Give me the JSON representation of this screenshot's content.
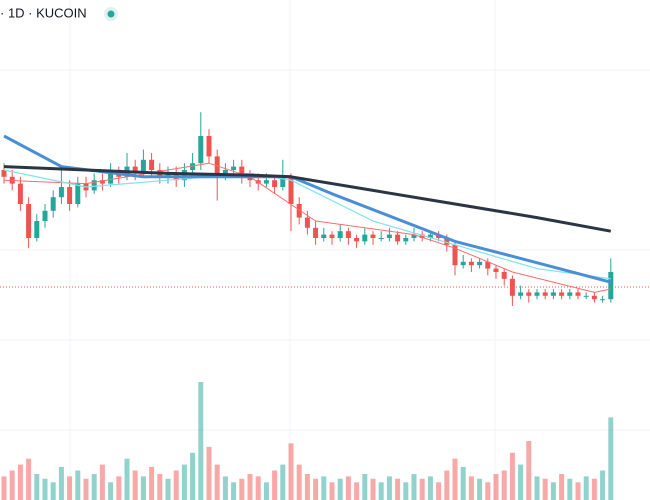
{
  "chart_data": {
    "type": "candlestick",
    "title": "· 1D · KUCOIN",
    "ylim": [
      0,
      100
    ],
    "volume_lim": [
      0,
      100
    ],
    "up_color": "#26a69a",
    "down_color": "#ef5350",
    "candles": [
      [
        50,
        52,
        46,
        48
      ],
      [
        48,
        50,
        44,
        46
      ],
      [
        46,
        48,
        38,
        40
      ],
      [
        40,
        42,
        27,
        30
      ],
      [
        30,
        37,
        29,
        35
      ],
      [
        35,
        40,
        33,
        38
      ],
      [
        38,
        44,
        36,
        42
      ],
      [
        42,
        50,
        40,
        45
      ],
      [
        45,
        47,
        38,
        40
      ],
      [
        40,
        48,
        39,
        46
      ],
      [
        46,
        48,
        42,
        44
      ],
      [
        44,
        49,
        43,
        47
      ],
      [
        47,
        49,
        44,
        46
      ],
      [
        46,
        52,
        45,
        49
      ],
      [
        49,
        51,
        46,
        48
      ],
      [
        48,
        55,
        47,
        51
      ],
      [
        51,
        53,
        47,
        49
      ],
      [
        49,
        56,
        48,
        53
      ],
      [
        53,
        55,
        48,
        50
      ],
      [
        50,
        52,
        46,
        48
      ],
      [
        48,
        51,
        46,
        49
      ],
      [
        49,
        51,
        45,
        47
      ],
      [
        47,
        52,
        45,
        50
      ],
      [
        50,
        55,
        48,
        52
      ],
      [
        52,
        67,
        50,
        60
      ],
      [
        60,
        62,
        52,
        54
      ],
      [
        54,
        56,
        41,
        49
      ],
      [
        49,
        52,
        47,
        50
      ],
      [
        50,
        53,
        48,
        51
      ],
      [
        51,
        53,
        46,
        48
      ],
      [
        48,
        50,
        45,
        47
      ],
      [
        47,
        49,
        44,
        46
      ],
      [
        46,
        49,
        45,
        47
      ],
      [
        47,
        48,
        43,
        45
      ],
      [
        45,
        53,
        44,
        48
      ],
      [
        48,
        49,
        32,
        40
      ],
      [
        40,
        42,
        34,
        36
      ],
      [
        36,
        38,
        31,
        33
      ],
      [
        33,
        35,
        28,
        30
      ],
      [
        30,
        33,
        29,
        31
      ],
      [
        31,
        32,
        28,
        30
      ],
      [
        30,
        34,
        29,
        32
      ],
      [
        32,
        33,
        28,
        30
      ],
      [
        30,
        31,
        27,
        29
      ],
      [
        29,
        33,
        28,
        31
      ],
      [
        31,
        32,
        28,
        30
      ],
      [
        30,
        32,
        29,
        30
      ],
      [
        30,
        33,
        29,
        31
      ],
      [
        31,
        32,
        28,
        29
      ],
      [
        29,
        31,
        28,
        30
      ],
      [
        30,
        33,
        29,
        31
      ],
      [
        31,
        32,
        29,
        30
      ],
      [
        30,
        32,
        29,
        31
      ],
      [
        31,
        32,
        29,
        30
      ],
      [
        30,
        31,
        26,
        28
      ],
      [
        28,
        29,
        19,
        22
      ],
      [
        22,
        25,
        21,
        23
      ],
      [
        23,
        24,
        20,
        22
      ],
      [
        22,
        24,
        21,
        23
      ],
      [
        23,
        24,
        19,
        21
      ],
      [
        21,
        22,
        18,
        20
      ],
      [
        20,
        21,
        16,
        18
      ],
      [
        18,
        19,
        10,
        13
      ],
      [
        13,
        16,
        12,
        14
      ],
      [
        14,
        15,
        11,
        13
      ],
      [
        13,
        15,
        12,
        14
      ],
      [
        14,
        15,
        12,
        13
      ],
      [
        13,
        15,
        12,
        14
      ],
      [
        14,
        15,
        12,
        13
      ],
      [
        13,
        15,
        12,
        14
      ],
      [
        14,
        15,
        12,
        13
      ],
      [
        13,
        14,
        12,
        13
      ],
      [
        13,
        14,
        11,
        12
      ],
      [
        12,
        13,
        11,
        12
      ],
      [
        12,
        24,
        11,
        20
      ]
    ],
    "volume": [
      20,
      25,
      30,
      35,
      22,
      18,
      15,
      28,
      20,
      25,
      18,
      22,
      30,
      15,
      20,
      35,
      25,
      20,
      28,
      22,
      18,
      25,
      30,
      40,
      100,
      45,
      30,
      20,
      15,
      18,
      22,
      20,
      15,
      25,
      30,
      48,
      30,
      22,
      18,
      20,
      15,
      18,
      20,
      15,
      22,
      18,
      15,
      20,
      18,
      15,
      22,
      18,
      20,
      15,
      25,
      35,
      28,
      20,
      18,
      15,
      22,
      25,
      40,
      30,
      50,
      20,
      18,
      15,
      22,
      18,
      15,
      20,
      18,
      25,
      70
    ],
    "lines": [
      {
        "color": "#ff6b6b",
        "width": 1,
        "x": [
          0,
          10,
          20,
          25,
          30,
          38,
          50,
          55,
          62,
          72,
          74
        ],
        "values": [
          47,
          46,
          50,
          52,
          48,
          35,
          31,
          27,
          20,
          14,
          15
        ]
      },
      {
        "color": "#7fe3ee",
        "width": 1.2,
        "x": [
          0,
          10,
          20,
          30,
          35,
          45,
          55,
          65,
          74
        ],
        "values": [
          50,
          45,
          47,
          49,
          47,
          35,
          28,
          21,
          18
        ]
      },
      {
        "color": "#4a8fd6",
        "width": 3,
        "x": [
          0,
          7,
          17,
          35,
          40,
          55,
          63,
          74
        ],
        "values": [
          60,
          51,
          48,
          48,
          43,
          29,
          24,
          17
        ]
      },
      {
        "color": "#2b3645",
        "width": 3,
        "x": [
          0,
          10,
          20,
          30,
          35,
          45,
          55,
          65,
          74
        ],
        "values": [
          51,
          50,
          49,
          48.5,
          48,
          44,
          40,
          36,
          32
        ]
      }
    ]
  }
}
